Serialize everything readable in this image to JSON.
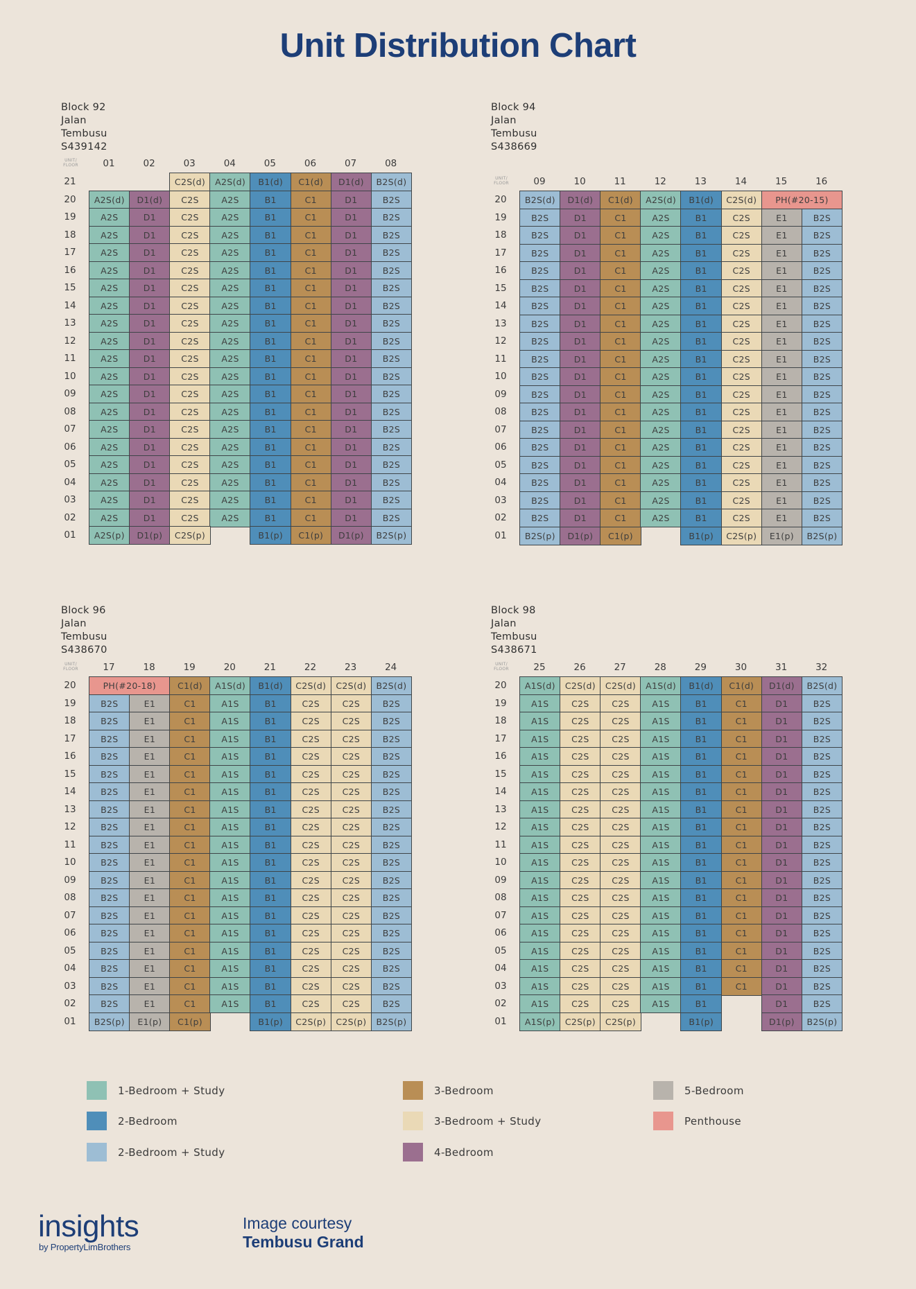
{
  "title": "Unit Distribution Chart",
  "corner_label": [
    "UNIT/",
    "FLOOR"
  ],
  "colors": {
    "A": "#8fc1b4",
    "B1": "#4f8eb9",
    "B2S": "#9dbdd4",
    "C1": "#b98e55",
    "C2S": "#ead9b6",
    "D1": "#9b6f8f",
    "E1": "#b8b3ac",
    "PH": "#e8968e"
  },
  "chart_data": {
    "type": "table",
    "title": "Unit Distribution Chart",
    "blocks": [
      {
        "name": "Block 92",
        "street": "Jalan Tembusu",
        "postal": "S439142",
        "units": [
          "01",
          "02",
          "03",
          "04",
          "05",
          "06",
          "07",
          "08"
        ],
        "floors": [
          "21",
          "20",
          "19",
          "18",
          "17",
          "16",
          "15",
          "14",
          "13",
          "12",
          "11",
          "10",
          "09",
          "08",
          "07",
          "06",
          "05",
          "04",
          "03",
          "02",
          "01"
        ],
        "rows": [
          [
            null,
            null,
            {
              "t": "C2S(d)",
              "c": "C2S"
            },
            {
              "t": "A2S(d)",
              "c": "A"
            },
            {
              "t": "B1(d)",
              "c": "B1"
            },
            {
              "t": "C1(d)",
              "c": "C1"
            },
            {
              "t": "D1(d)",
              "c": "D1"
            },
            {
              "t": "B2S(d)",
              "c": "B2S"
            }
          ],
          [
            {
              "t": "A2S(d)",
              "c": "A"
            },
            {
              "t": "D1(d)",
              "c": "D1"
            },
            {
              "t": "C2S",
              "c": "C2S"
            },
            {
              "t": "A2S",
              "c": "A"
            },
            {
              "t": "B1",
              "c": "B1"
            },
            {
              "t": "C1",
              "c": "C1"
            },
            {
              "t": "D1",
              "c": "D1"
            },
            {
              "t": "B2S",
              "c": "B2S"
            }
          ],
          "std",
          "std",
          "std",
          "std",
          "std",
          "std",
          "std",
          "std",
          "std",
          "std",
          "std",
          "std",
          "std",
          "std",
          "std",
          "std",
          "std",
          "std",
          [
            {
              "t": "A2S(p)",
              "c": "A"
            },
            {
              "t": "D1(p)",
              "c": "D1"
            },
            {
              "t": "C2S(p)",
              "c": "C2S"
            },
            null,
            {
              "t": "B1(p)",
              "c": "B1"
            },
            {
              "t": "C1(p)",
              "c": "C1"
            },
            {
              "t": "D1(p)",
              "c": "D1"
            },
            {
              "t": "B2S(p)",
              "c": "B2S"
            }
          ]
        ],
        "std_row": [
          {
            "t": "A2S",
            "c": "A"
          },
          {
            "t": "D1",
            "c": "D1"
          },
          {
            "t": "C2S",
            "c": "C2S"
          },
          {
            "t": "A2S",
            "c": "A"
          },
          {
            "t": "B1",
            "c": "B1"
          },
          {
            "t": "C1",
            "c": "C1"
          },
          {
            "t": "D1",
            "c": "D1"
          },
          {
            "t": "B2S",
            "c": "B2S"
          }
        ]
      },
      {
        "name": "Block 94",
        "street": "Jalan Tembusu",
        "postal": "S438669",
        "units": [
          "09",
          "10",
          "11",
          "12",
          "13",
          "14",
          "15",
          "16"
        ],
        "floors": [
          "20",
          "19",
          "18",
          "17",
          "16",
          "15",
          "14",
          "13",
          "12",
          "11",
          "10",
          "09",
          "08",
          "07",
          "06",
          "05",
          "04",
          "03",
          "02",
          "01"
        ],
        "rows": [
          [
            {
              "t": "B2S(d)",
              "c": "B2S"
            },
            {
              "t": "D1(d)",
              "c": "D1"
            },
            {
              "t": "C1(d)",
              "c": "C1"
            },
            {
              "t": "A2S(d)",
              "c": "A"
            },
            {
              "t": "B1(d)",
              "c": "B1"
            },
            {
              "t": "C2S(d)",
              "c": "C2S"
            },
            {
              "t": "PH(#20-15)",
              "c": "PH",
              "span": 2
            }
          ],
          "std",
          "std",
          "std",
          "std",
          "std",
          "std",
          "std",
          "std",
          "std",
          "std",
          "std",
          "std",
          "std",
          "std",
          "std",
          "std",
          "std",
          "std",
          [
            {
              "t": "B2S(p)",
              "c": "B2S"
            },
            {
              "t": "D1(p)",
              "c": "D1"
            },
            {
              "t": "C1(p)",
              "c": "C1"
            },
            null,
            {
              "t": "B1(p)",
              "c": "B1"
            },
            {
              "t": "C2S(p)",
              "c": "C2S"
            },
            {
              "t": "E1(p)",
              "c": "E1"
            },
            {
              "t": "B2S(p)",
              "c": "B2S"
            }
          ]
        ],
        "std_row": [
          {
            "t": "B2S",
            "c": "B2S"
          },
          {
            "t": "D1",
            "c": "D1"
          },
          {
            "t": "C1",
            "c": "C1"
          },
          {
            "t": "A2S",
            "c": "A"
          },
          {
            "t": "B1",
            "c": "B1"
          },
          {
            "t": "C2S",
            "c": "C2S"
          },
          {
            "t": "E1",
            "c": "E1"
          },
          {
            "t": "B2S",
            "c": "B2S"
          }
        ]
      },
      {
        "name": "Block 96",
        "street": "Jalan Tembusu",
        "postal": "S438670",
        "units": [
          "17",
          "18",
          "19",
          "20",
          "21",
          "22",
          "23",
          "24"
        ],
        "floors": [
          "20",
          "19",
          "18",
          "17",
          "16",
          "15",
          "14",
          "13",
          "12",
          "11",
          "10",
          "09",
          "08",
          "07",
          "06",
          "05",
          "04",
          "03",
          "02",
          "01"
        ],
        "rows": [
          [
            {
              "t": "PH(#20-18)",
              "c": "PH",
              "span": 2
            },
            {
              "t": "C1(d)",
              "c": "C1"
            },
            {
              "t": "A1S(d)",
              "c": "A"
            },
            {
              "t": "B1(d)",
              "c": "B1"
            },
            {
              "t": "C2S(d)",
              "c": "C2S"
            },
            {
              "t": "C2S(d)",
              "c": "C2S"
            },
            {
              "t": "B2S(d)",
              "c": "B2S"
            }
          ],
          "std",
          "std",
          "std",
          "std",
          "std",
          "std",
          "std",
          "std",
          "std",
          "std",
          "std",
          "std",
          "std",
          "std",
          "std",
          "std",
          "std",
          "std",
          [
            {
              "t": "B2S(p)",
              "c": "B2S"
            },
            {
              "t": "E1(p)",
              "c": "E1"
            },
            {
              "t": "C1(p)",
              "c": "C1"
            },
            null,
            {
              "t": "B1(p)",
              "c": "B1"
            },
            {
              "t": "C2S(p)",
              "c": "C2S"
            },
            {
              "t": "C2S(p)",
              "c": "C2S"
            },
            {
              "t": "B2S(p)",
              "c": "B2S"
            }
          ]
        ],
        "std_row": [
          {
            "t": "B2S",
            "c": "B2S"
          },
          {
            "t": "E1",
            "c": "E1"
          },
          {
            "t": "C1",
            "c": "C1"
          },
          {
            "t": "A1S",
            "c": "A"
          },
          {
            "t": "B1",
            "c": "B1"
          },
          {
            "t": "C2S",
            "c": "C2S"
          },
          {
            "t": "C2S",
            "c": "C2S"
          },
          {
            "t": "B2S",
            "c": "B2S"
          }
        ]
      },
      {
        "name": "Block 98",
        "street": "Jalan Tembusu",
        "postal": "S438671",
        "units": [
          "25",
          "26",
          "27",
          "28",
          "29",
          "30",
          "31",
          "32"
        ],
        "floors": [
          "20",
          "19",
          "18",
          "17",
          "16",
          "15",
          "14",
          "13",
          "12",
          "11",
          "10",
          "09",
          "08",
          "07",
          "06",
          "05",
          "04",
          "03",
          "02",
          "01"
        ],
        "rows": [
          [
            {
              "t": "A1S(d)",
              "c": "A"
            },
            {
              "t": "C2S(d)",
              "c": "C2S"
            },
            {
              "t": "C2S(d)",
              "c": "C2S"
            },
            {
              "t": "A1S(d)",
              "c": "A"
            },
            {
              "t": "B1(d)",
              "c": "B1"
            },
            {
              "t": "C1(d)",
              "c": "C1"
            },
            {
              "t": "D1(d)",
              "c": "D1"
            },
            {
              "t": "B2S(d)",
              "c": "B2S"
            }
          ],
          "std",
          "std",
          "std",
          "std",
          "std",
          "std",
          "std",
          "std",
          "std",
          "std",
          "std",
          "std",
          "std",
          "std",
          "std",
          "std",
          "std",
          [
            {
              "t": "A1S",
              "c": "A"
            },
            {
              "t": "C2S",
              "c": "C2S"
            },
            {
              "t": "C2S",
              "c": "C2S"
            },
            {
              "t": "A1S",
              "c": "A"
            },
            {
              "t": "B1",
              "c": "B1"
            },
            null,
            {
              "t": "D1",
              "c": "D1"
            },
            {
              "t": "B2S",
              "c": "B2S"
            }
          ],
          [
            {
              "t": "A1S(p)",
              "c": "A"
            },
            {
              "t": "C2S(p)",
              "c": "C2S"
            },
            {
              "t": "C2S(p)",
              "c": "C2S"
            },
            null,
            {
              "t": "B1(p)",
              "c": "B1"
            },
            null,
            {
              "t": "D1(p)",
              "c": "D1"
            },
            {
              "t": "B2S(p)",
              "c": "B2S"
            }
          ]
        ],
        "std_row": [
          {
            "t": "A1S",
            "c": "A"
          },
          {
            "t": "C2S",
            "c": "C2S"
          },
          {
            "t": "C2S",
            "c": "C2S"
          },
          {
            "t": "A1S",
            "c": "A"
          },
          {
            "t": "B1",
            "c": "B1"
          },
          {
            "t": "C1",
            "c": "C1"
          },
          {
            "t": "D1",
            "c": "D1"
          },
          {
            "t": "B2S",
            "c": "B2S"
          }
        ]
      }
    ],
    "legend": [
      {
        "key": "A",
        "label": "1-Bedroom + Study"
      },
      {
        "key": "B1",
        "label": "2-Bedroom"
      },
      {
        "key": "B2S",
        "label": "2-Bedroom + Study"
      },
      {
        "key": "C1",
        "label": "3-Bedroom"
      },
      {
        "key": "C2S",
        "label": "3-Bedroom + Study"
      },
      {
        "key": "D1",
        "label": "4-Bedroom"
      },
      {
        "key": "E1",
        "label": "5-Bedroom"
      },
      {
        "key": "PH",
        "label": "Penthouse"
      }
    ]
  },
  "footer": {
    "logo": "insights",
    "logo_sub": "by PropertyLimBrothers",
    "courtesy_line1": "Image courtesy",
    "courtesy_line2": "Tembusu Grand"
  }
}
